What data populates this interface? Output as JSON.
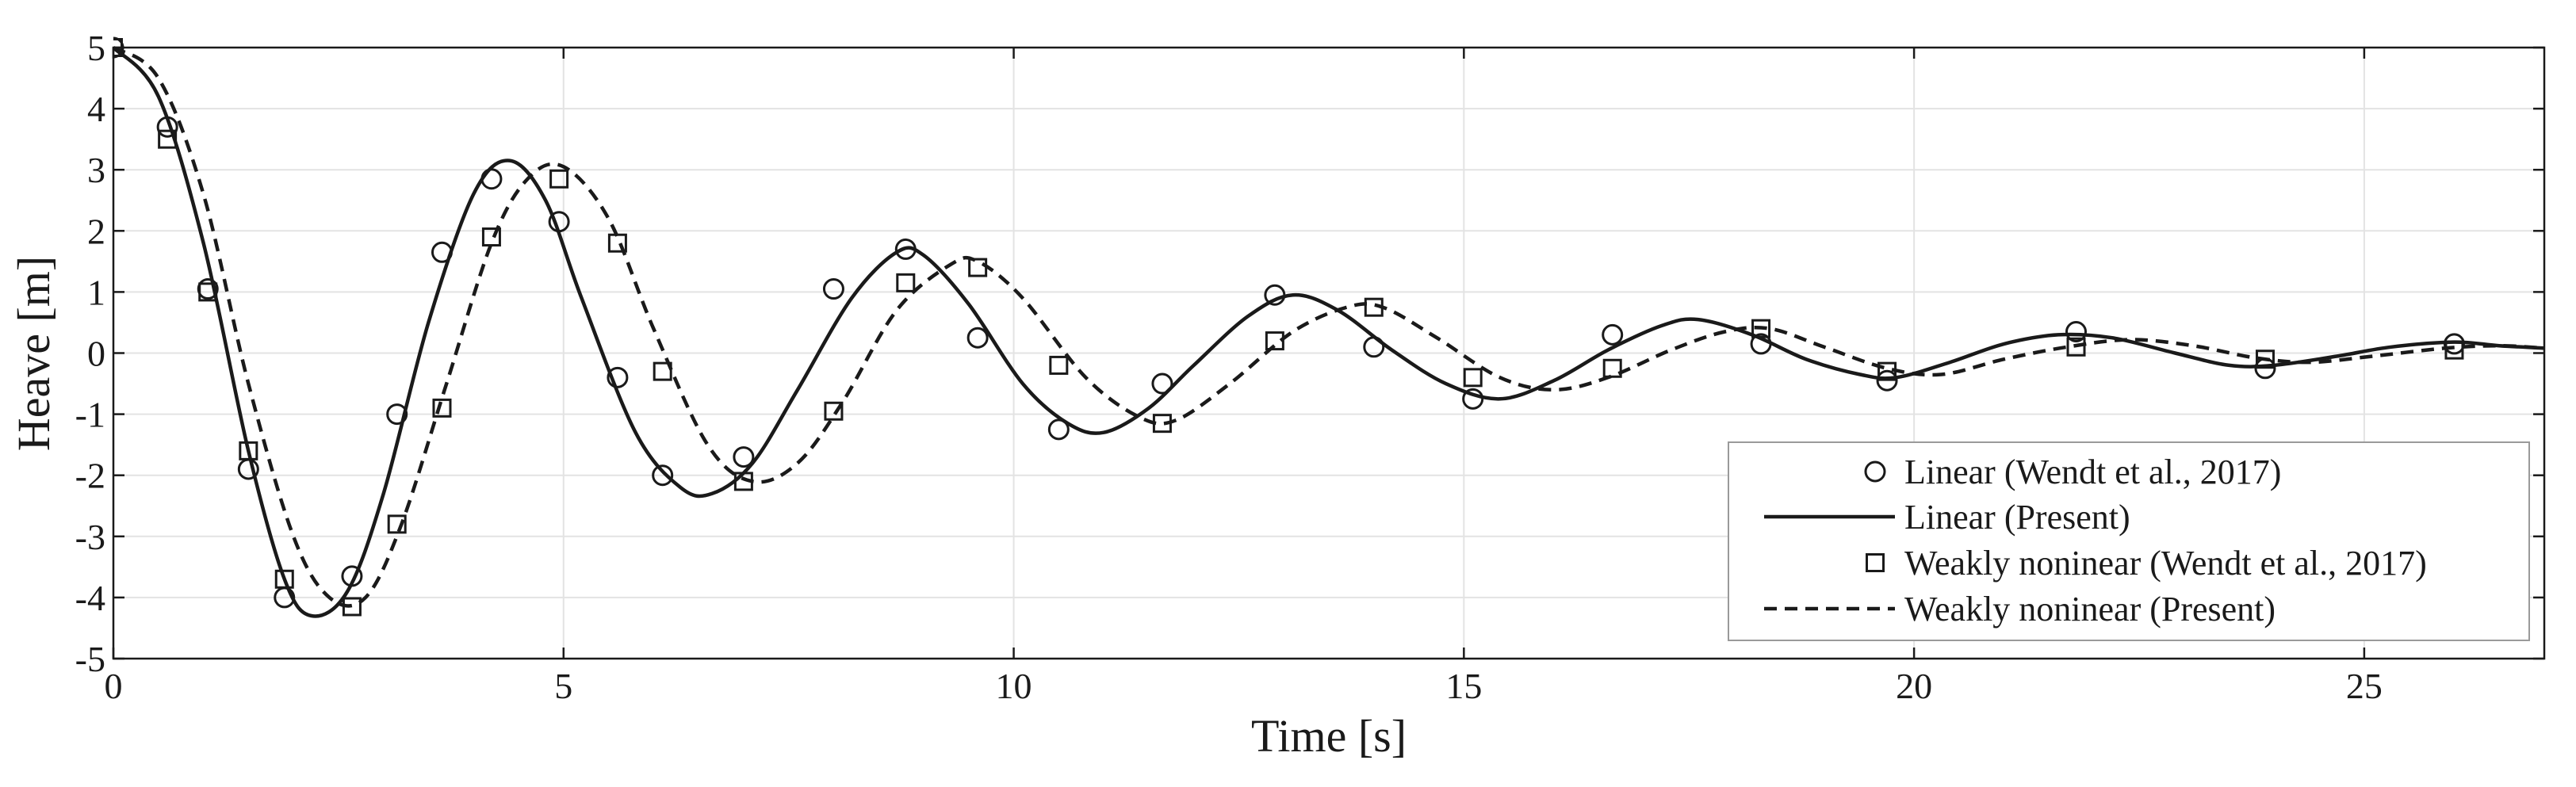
{
  "chart_data": {
    "type": "line",
    "title": "",
    "xlabel": "Time [s]",
    "ylabel": "Heave [m]",
    "xlim": [
      0,
      27
    ],
    "ylim": [
      -5,
      5
    ],
    "grid": true,
    "legend_position": "bottom-right",
    "x_ticks": [
      0,
      5,
      10,
      15,
      20,
      25
    ],
    "x_tick_labels": [
      "0",
      "5",
      "10",
      "15",
      "20",
      "25"
    ],
    "y_ticks": [
      5,
      4,
      3,
      2,
      1,
      0,
      -1,
      -2,
      -3,
      -4,
      -5
    ],
    "y_tick_labels": [
      "5",
      "4",
      "3",
      "2",
      "1",
      "0",
      "-1",
      "-2",
      "-3",
      "-4",
      "-5"
    ],
    "series": [
      {
        "name": "Linear (Wendt et al., 2017)",
        "style": "markers",
        "marker": "circle",
        "points": [
          [
            0,
            5.0
          ],
          [
            0.6,
            3.7
          ],
          [
            1.05,
            1.05
          ],
          [
            1.5,
            -1.9
          ],
          [
            1.9,
            -4.0
          ],
          [
            2.65,
            -3.65
          ],
          [
            3.15,
            -1.0
          ],
          [
            3.65,
            1.65
          ],
          [
            4.2,
            2.85
          ],
          [
            4.95,
            2.15
          ],
          [
            5.6,
            -0.4
          ],
          [
            6.1,
            -2.0
          ],
          [
            7.0,
            -1.7
          ],
          [
            8.0,
            1.05
          ],
          [
            8.8,
            1.7
          ],
          [
            9.6,
            0.25
          ],
          [
            10.5,
            -1.25
          ],
          [
            11.65,
            -0.5
          ],
          [
            12.9,
            0.95
          ],
          [
            14.0,
            0.1
          ],
          [
            15.1,
            -0.75
          ],
          [
            16.65,
            0.3
          ],
          [
            18.3,
            0.15
          ],
          [
            19.7,
            -0.45
          ],
          [
            21.8,
            0.35
          ],
          [
            23.9,
            -0.25
          ],
          [
            26.0,
            0.15
          ]
        ]
      },
      {
        "name": "Linear (Present)",
        "style": "solid",
        "points": [
          [
            0,
            5.0
          ],
          [
            0.5,
            4.2
          ],
          [
            1.0,
            1.8
          ],
          [
            1.5,
            -1.6
          ],
          [
            1.9,
            -3.7
          ],
          [
            2.2,
            -4.3
          ],
          [
            2.6,
            -3.9
          ],
          [
            3.0,
            -2.3
          ],
          [
            3.5,
            0.5
          ],
          [
            4.0,
            2.6
          ],
          [
            4.4,
            3.15
          ],
          [
            4.8,
            2.5
          ],
          [
            5.2,
            0.9
          ],
          [
            5.8,
            -1.3
          ],
          [
            6.3,
            -2.2
          ],
          [
            6.65,
            -2.3
          ],
          [
            7.1,
            -1.8
          ],
          [
            7.6,
            -0.6
          ],
          [
            8.2,
            0.9
          ],
          [
            8.7,
            1.65
          ],
          [
            9.0,
            1.6
          ],
          [
            9.5,
            0.8
          ],
          [
            10.1,
            -0.5
          ],
          [
            10.6,
            -1.15
          ],
          [
            11.0,
            -1.3
          ],
          [
            11.5,
            -0.9
          ],
          [
            12.0,
            -0.2
          ],
          [
            12.6,
            0.6
          ],
          [
            13.1,
            0.95
          ],
          [
            13.6,
            0.7
          ],
          [
            14.2,
            0.05
          ],
          [
            14.8,
            -0.5
          ],
          [
            15.4,
            -0.75
          ],
          [
            16.0,
            -0.45
          ],
          [
            16.6,
            0.05
          ],
          [
            17.2,
            0.45
          ],
          [
            17.6,
            0.55
          ],
          [
            18.2,
            0.3
          ],
          [
            18.8,
            -0.1
          ],
          [
            19.4,
            -0.35
          ],
          [
            19.8,
            -0.4
          ],
          [
            20.4,
            -0.15
          ],
          [
            21.0,
            0.15
          ],
          [
            21.6,
            0.3
          ],
          [
            22.2,
            0.25
          ],
          [
            22.9,
            0.0
          ],
          [
            23.5,
            -0.2
          ],
          [
            24.0,
            -0.2
          ],
          [
            24.7,
            -0.05
          ],
          [
            25.3,
            0.1
          ],
          [
            26.0,
            0.18
          ],
          [
            26.5,
            0.12
          ],
          [
            27.0,
            0.08
          ]
        ]
      },
      {
        "name": "Weakly noninear (Wendt et al., 2017)",
        "style": "markers",
        "marker": "square",
        "points": [
          [
            0,
            5.0
          ],
          [
            0.6,
            3.5
          ],
          [
            1.05,
            1.0
          ],
          [
            1.5,
            -1.6
          ],
          [
            1.9,
            -3.7
          ],
          [
            2.65,
            -4.15
          ],
          [
            3.15,
            -2.8
          ],
          [
            3.65,
            -0.9
          ],
          [
            4.2,
            1.9
          ],
          [
            4.95,
            2.85
          ],
          [
            5.6,
            1.8
          ],
          [
            6.1,
            -0.3
          ],
          [
            7.0,
            -2.1
          ],
          [
            8.0,
            -0.95
          ],
          [
            8.8,
            1.15
          ],
          [
            9.6,
            1.4
          ],
          [
            10.5,
            -0.2
          ],
          [
            11.65,
            -1.15
          ],
          [
            12.9,
            0.2
          ],
          [
            14.0,
            0.75
          ],
          [
            15.1,
            -0.4
          ],
          [
            16.65,
            -0.25
          ],
          [
            18.3,
            0.4
          ],
          [
            19.7,
            -0.3
          ],
          [
            21.8,
            0.1
          ],
          [
            23.9,
            -0.1
          ],
          [
            26.0,
            0.05
          ]
        ]
      },
      {
        "name": "Weakly noninear (Present)",
        "style": "dashed",
        "points": [
          [
            0,
            5.0
          ],
          [
            0.5,
            4.5
          ],
          [
            1.0,
            2.6
          ],
          [
            1.5,
            -0.5
          ],
          [
            2.0,
            -3.0
          ],
          [
            2.4,
            -4.0
          ],
          [
            2.8,
            -4.0
          ],
          [
            3.2,
            -2.8
          ],
          [
            3.7,
            -0.5
          ],
          [
            4.2,
            1.8
          ],
          [
            4.6,
            2.85
          ],
          [
            5.0,
            3.05
          ],
          [
            5.5,
            2.2
          ],
          [
            6.0,
            0.4
          ],
          [
            6.6,
            -1.5
          ],
          [
            7.1,
            -2.1
          ],
          [
            7.6,
            -1.8
          ],
          [
            8.1,
            -0.8
          ],
          [
            8.7,
            0.7
          ],
          [
            9.3,
            1.45
          ],
          [
            9.6,
            1.5
          ],
          [
            10.1,
            0.9
          ],
          [
            10.8,
            -0.4
          ],
          [
            11.4,
            -1.05
          ],
          [
            11.8,
            -1.1
          ],
          [
            12.4,
            -0.5
          ],
          [
            13.1,
            0.35
          ],
          [
            13.7,
            0.75
          ],
          [
            14.1,
            0.75
          ],
          [
            14.7,
            0.25
          ],
          [
            15.4,
            -0.4
          ],
          [
            16.0,
            -0.6
          ],
          [
            16.6,
            -0.4
          ],
          [
            17.3,
            0.05
          ],
          [
            17.9,
            0.35
          ],
          [
            18.4,
            0.4
          ],
          [
            19.0,
            0.1
          ],
          [
            19.7,
            -0.25
          ],
          [
            20.3,
            -0.35
          ],
          [
            21.0,
            -0.1
          ],
          [
            21.7,
            0.1
          ],
          [
            22.4,
            0.22
          ],
          [
            23.1,
            0.12
          ],
          [
            23.8,
            -0.08
          ],
          [
            24.4,
            -0.15
          ],
          [
            25.1,
            -0.05
          ],
          [
            25.9,
            0.08
          ],
          [
            26.5,
            0.12
          ],
          [
            27.0,
            0.08
          ]
        ]
      }
    ]
  }
}
